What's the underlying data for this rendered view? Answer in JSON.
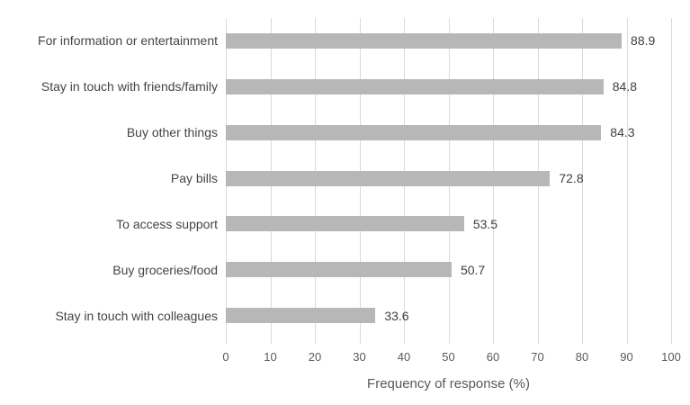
{
  "chart_data": {
    "type": "bar",
    "orientation": "horizontal",
    "title": "",
    "xlabel": "Frequency of response (%)",
    "ylabel": "",
    "categories": [
      "For information or entertainment",
      "Stay in touch with friends/family",
      "Buy other things",
      "Pay bills",
      "To access support",
      "Buy groceries/food",
      "Stay in touch with colleagues"
    ],
    "values": [
      88.9,
      84.8,
      84.3,
      72.8,
      53.5,
      50.7,
      33.6
    ],
    "data_labels": [
      "88.9",
      "84.8",
      "84.3",
      "72.8",
      "53.5",
      "50.7",
      "33.6"
    ],
    "xlim": [
      0,
      100
    ],
    "x_ticks": [
      0,
      10,
      20,
      30,
      40,
      50,
      60,
      70,
      80,
      90,
      100
    ],
    "grid": "vertical-gridlines",
    "legend": "none"
  },
  "colors": {
    "background": "#ffffff",
    "bar": "#b7b7b7",
    "gridline": "#dadada",
    "category_label": "#444444",
    "value_label": "#3f3f3f",
    "tick_label": "#595959",
    "axis_title": "#595959"
  }
}
